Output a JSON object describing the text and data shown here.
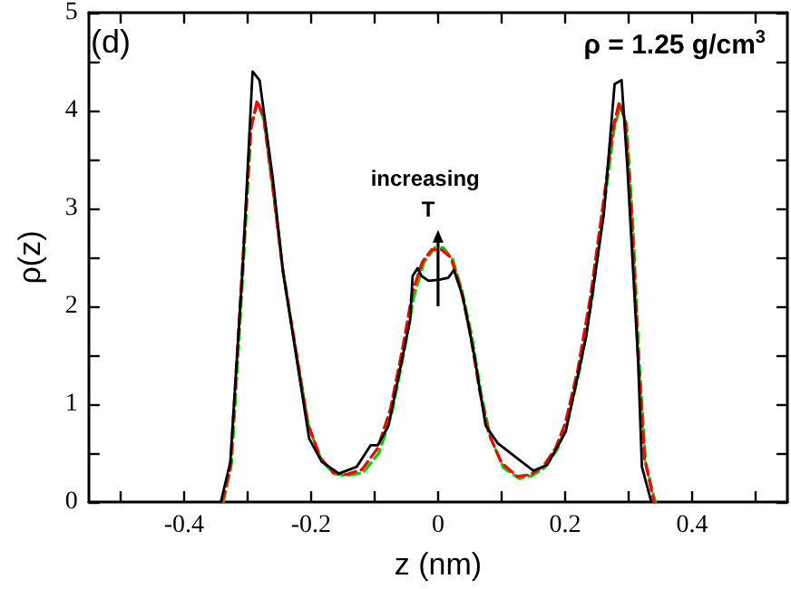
{
  "chart_data": {
    "type": "line",
    "xlabel": "z (nm)",
    "ylabel": "ρ(z)",
    "xlim": [
      -0.55,
      0.55
    ],
    "xticks": [
      {
        "value": -0.5,
        "label": null
      },
      -0.4,
      {
        "value": -0.3,
        "label": null
      },
      -0.2,
      {
        "value": -0.1,
        "label": null
      },
      0,
      {
        "value": 0.1,
        "label": null
      },
      0.2,
      {
        "value": 0.3,
        "label": null
      },
      0.4,
      {
        "value": 0.5,
        "label": null
      }
    ],
    "ylim": [
      0,
      5
    ],
    "yticks": [
      0,
      {
        "value": 0.5,
        "label": null
      },
      1,
      {
        "value": 1.5,
        "label": null
      },
      2,
      {
        "value": 2.5,
        "label": null
      },
      3,
      {
        "value": 3.5,
        "label": null
      },
      4,
      {
        "value": 4.5,
        "label": null
      },
      5
    ],
    "grid": false,
    "marker": "none",
    "annotations": [
      "(d)",
      "ρ = 1.25 g/cm$^{3}$",
      "increasing T"
    ],
    "series": [
      {
        "color": "#000000",
        "line_style": "solid",
        "x": [
          -0.342,
          -0.327,
          -0.308,
          -0.292,
          -0.281,
          -0.26,
          -0.244,
          -0.203,
          -0.183,
          -0.156,
          -0.128,
          -0.106,
          -0.095,
          -0.078,
          -0.044,
          -0.04,
          -0.032,
          -0.026,
          -0.015,
          0,
          0.016,
          0.025,
          0.039,
          0.057,
          0.075,
          0.094,
          0.15,
          0.172,
          0.196,
          0.201,
          0.233,
          0.261,
          0.278,
          0.289,
          0.298,
          0.315,
          0.321,
          0.335
        ],
        "values": [
          0,
          0.41,
          2.35,
          4.4,
          4.31,
          3.3,
          2.35,
          0.65,
          0.41,
          0.29,
          0.36,
          0.58,
          0.58,
          0.78,
          1.86,
          2.31,
          2.39,
          2.31,
          2.26,
          2.27,
          2.29,
          2.37,
          2.1,
          1.5,
          0.78,
          0.6,
          0.32,
          0.38,
          0.66,
          0.72,
          1.68,
          2.94,
          4.27,
          4.31,
          3.43,
          1.44,
          0.36,
          0.02
        ]
      },
      {
        "color": "#ff0000",
        "line_style": "dashed",
        "x": [
          -0.34,
          -0.327,
          -0.31,
          -0.295,
          -0.285,
          -0.275,
          -0.26,
          -0.245,
          -0.225,
          -0.205,
          -0.185,
          -0.165,
          -0.145,
          -0.12,
          -0.095,
          -0.075,
          -0.055,
          -0.04,
          -0.025,
          -0.01,
          0.005,
          0.02,
          0.035,
          0.05,
          0.065,
          0.08,
          0.1,
          0.125,
          0.145,
          0.165,
          0.185,
          0.2,
          0.22,
          0.24,
          0.26,
          0.275,
          0.285,
          0.295,
          0.305,
          0.315,
          0.325,
          0.34
        ],
        "values": [
          0,
          0.35,
          2.2,
          3.8,
          4.1,
          3.95,
          3.2,
          2.4,
          1.6,
          0.8,
          0.45,
          0.3,
          0.28,
          0.33,
          0.55,
          0.95,
          1.6,
          2.15,
          2.45,
          2.58,
          2.58,
          2.5,
          2.2,
          1.75,
          1.15,
          0.7,
          0.4,
          0.26,
          0.28,
          0.36,
          0.55,
          0.8,
          1.35,
          2.1,
          3.05,
          3.8,
          4.08,
          3.9,
          2.9,
          1.5,
          0.45,
          0
        ]
      },
      {
        "color": "#00cc00",
        "line_style": "dashed",
        "x": [
          -0.338,
          -0.325,
          -0.308,
          -0.294,
          -0.284,
          -0.274,
          -0.259,
          -0.244,
          -0.224,
          -0.204,
          -0.184,
          -0.164,
          -0.144,
          -0.118,
          -0.093,
          -0.073,
          -0.053,
          -0.038,
          -0.022,
          -0.005,
          0.008,
          0.023,
          0.038,
          0.053,
          0.068,
          0.083,
          0.103,
          0.128,
          0.148,
          0.168,
          0.188,
          0.203,
          0.223,
          0.243,
          0.262,
          0.277,
          0.287,
          0.297,
          0.307,
          0.317,
          0.327,
          0.342
        ],
        "values": [
          0,
          0.4,
          2.25,
          3.85,
          4.08,
          3.9,
          3.15,
          2.35,
          1.55,
          0.78,
          0.43,
          0.29,
          0.27,
          0.3,
          0.5,
          0.9,
          1.55,
          2.1,
          2.45,
          2.6,
          2.6,
          2.48,
          2.15,
          1.7,
          1.1,
          0.65,
          0.35,
          0.24,
          0.27,
          0.35,
          0.54,
          0.8,
          1.35,
          2.1,
          3.05,
          3.8,
          4.06,
          3.85,
          2.8,
          1.4,
          0.4,
          0
        ]
      }
    ]
  }
}
